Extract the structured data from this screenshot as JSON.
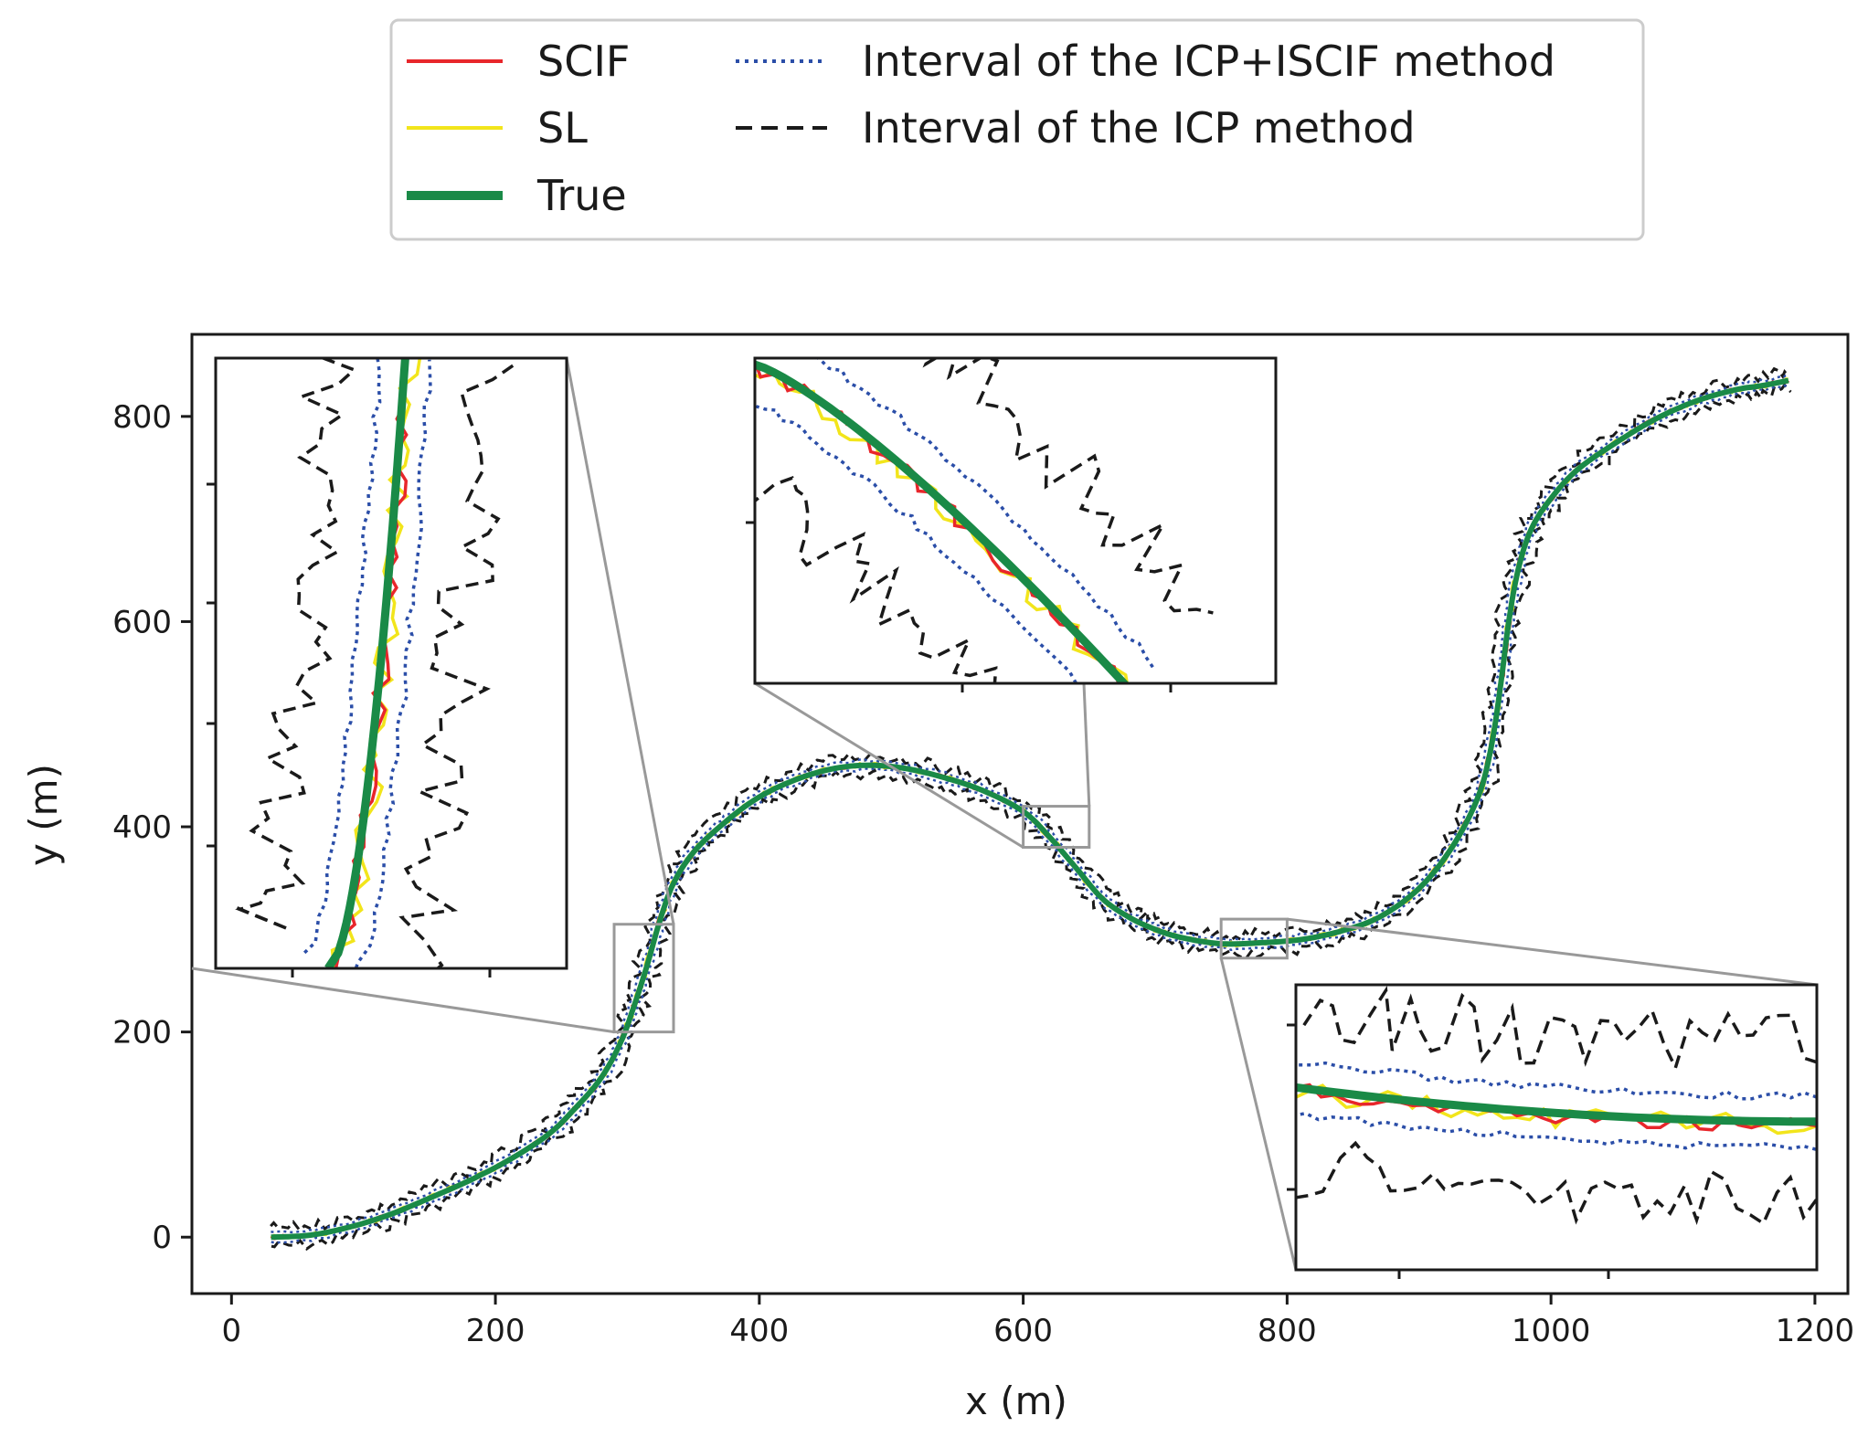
{
  "chart_data": {
    "type": "line",
    "title": "",
    "xlabel": "x (m)",
    "ylabel": "y (m)",
    "xlim": [
      -30,
      1225
    ],
    "ylim": [
      -55,
      880
    ],
    "xticks": [
      0,
      200,
      400,
      600,
      800,
      1000,
      1200
    ],
    "yticks": [
      0,
      200,
      400,
      600,
      800
    ],
    "xtick_labels": [
      "0",
      "200",
      "400",
      "600",
      "800",
      "1000",
      "1200"
    ],
    "ytick_labels": [
      "0",
      "200",
      "400",
      "600",
      "800"
    ],
    "grid": false,
    "legend_position": "top-center, above plot",
    "legend": [
      {
        "name": "SCIF",
        "color": "#e8262b",
        "style": "solid"
      },
      {
        "name": "SL",
        "color": "#f2e51b",
        "style": "solid"
      },
      {
        "name": "True",
        "color": "#1a8a47",
        "style": "solid-thick"
      },
      {
        "name": "Interval of the ICP+ISCIF method",
        "color": "#2b4ea8",
        "style": "dotted"
      },
      {
        "name": "Interval of the ICP method",
        "color": "#1a1a1a",
        "style": "dashed"
      }
    ],
    "true_trajectory": {
      "x": [
        30,
        60,
        90,
        120,
        150,
        180,
        210,
        240,
        260,
        280,
        295,
        305,
        315,
        325,
        335,
        350,
        370,
        395,
        420,
        450,
        480,
        510,
        540,
        570,
        600,
        620,
        640,
        660,
        680,
        700,
        720,
        750,
        780,
        810,
        840,
        870,
        900,
        925,
        945,
        955,
        962,
        968,
        975,
        985,
        1000,
        1020,
        1050,
        1080,
        1110,
        1140,
        1160,
        1180
      ],
      "y": [
        0,
        2,
        10,
        22,
        38,
        55,
        75,
        100,
        125,
        155,
        190,
        225,
        265,
        310,
        345,
        375,
        400,
        425,
        442,
        455,
        460,
        457,
        448,
        435,
        415,
        390,
        360,
        330,
        312,
        300,
        292,
        286,
        287,
        290,
        298,
        312,
        340,
        380,
        430,
        480,
        540,
        600,
        650,
        690,
        720,
        748,
        775,
        798,
        815,
        826,
        830,
        835
      ]
    },
    "zoom_regions": [
      {
        "name": "zoom-1",
        "x": [
          290,
          335
        ],
        "y": [
          200,
          305
        ]
      },
      {
        "name": "zoom-2",
        "x": [
          600,
          650
        ],
        "y": [
          380,
          420
        ]
      },
      {
        "name": "zoom-3",
        "x": [
          750,
          800
        ],
        "y": [
          272,
          310
        ]
      }
    ],
    "series_colors": {
      "scif": "#e8262b",
      "sl": "#f2e51b",
      "true": "#1a8a47",
      "icp_iscif": "#2b4ea8",
      "icp": "#1a1a1a"
    }
  }
}
